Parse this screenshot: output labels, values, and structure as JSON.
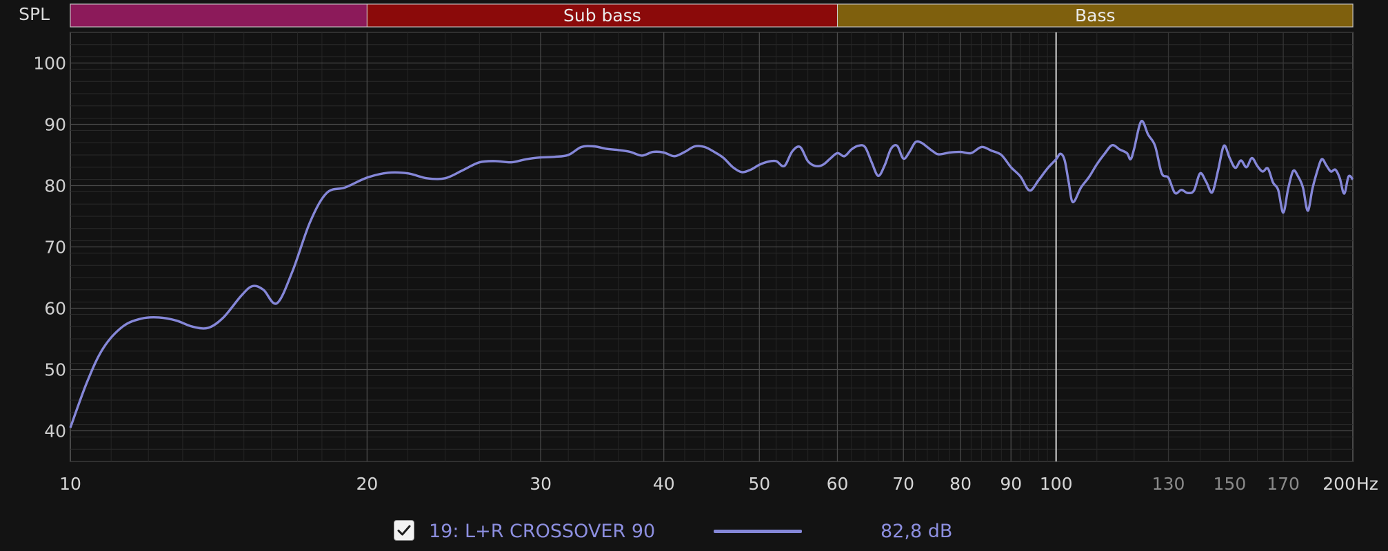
{
  "chart_data": {
    "type": "line",
    "title": "",
    "ylabel": "SPL",
    "xunit": "Hz",
    "xscale": "log",
    "xlim": [
      10,
      200
    ],
    "ylim": [
      35,
      105
    ],
    "grid": true,
    "y_ticks": [
      40,
      50,
      60,
      70,
      80,
      90,
      100
    ],
    "x_ticks": [
      {
        "value": 10,
        "label": "10",
        "bright": true
      },
      {
        "value": 20,
        "label": "20",
        "bright": true
      },
      {
        "value": 30,
        "label": "30",
        "bright": true
      },
      {
        "value": 40,
        "label": "40",
        "bright": true
      },
      {
        "value": 50,
        "label": "50",
        "bright": true
      },
      {
        "value": 60,
        "label": "60",
        "bright": true
      },
      {
        "value": 70,
        "label": "70",
        "bright": true
      },
      {
        "value": 80,
        "label": "80",
        "bright": true
      },
      {
        "value": 90,
        "label": "90",
        "bright": true
      },
      {
        "value": 100,
        "label": "100",
        "bright": true
      },
      {
        "value": 130,
        "label": "130",
        "bright": false
      },
      {
        "value": 150,
        "label": "150",
        "bright": false
      },
      {
        "value": 170,
        "label": "170",
        "bright": false
      },
      {
        "value": 200,
        "label": "200",
        "bright": true
      }
    ],
    "bands": [
      {
        "label": "",
        "from": 10,
        "to": 20,
        "color": "#8c1a5a"
      },
      {
        "label": "Sub bass",
        "from": 20,
        "to": 60,
        "color": "#8b0a0a"
      },
      {
        "label": "Bass",
        "from": 60,
        "to": 200,
        "color": "#7f600d"
      }
    ],
    "cursor_x": 100,
    "series": [
      {
        "name": "19: L+R CROSSOVER 90",
        "color": "#8587d8",
        "x": [
          10,
          10.4,
          10.8,
          11.3,
          11.8,
          12.3,
          12.8,
          13.3,
          13.8,
          14.3,
          14.9,
          15.3,
          15.7,
          16.2,
          16.8,
          17.5,
          18.2,
          19,
          20,
          21,
          22,
          23,
          24,
          25,
          26,
          27,
          28,
          29,
          30,
          31,
          32,
          33,
          34,
          35,
          36,
          37,
          38,
          39,
          40,
          41,
          42,
          43,
          44,
          45,
          46,
          47,
          48,
          49,
          50,
          51,
          52,
          53,
          54,
          55,
          56,
          57,
          58,
          59,
          60,
          61,
          62,
          63,
          64,
          65,
          66,
          67,
          68,
          69,
          70,
          71,
          72,
          73,
          74,
          75,
          76,
          78,
          80,
          82,
          84,
          86,
          88,
          90,
          92,
          94,
          96,
          98,
          100,
          101,
          102,
          103,
          104,
          106,
          108,
          110,
          112,
          114,
          116,
          118,
          119,
          120,
          122,
          124,
          126,
          128,
          130,
          132,
          134,
          136,
          138,
          140,
          142,
          144,
          146,
          148,
          150,
          152,
          154,
          156,
          158,
          160,
          162,
          164,
          166,
          168,
          170,
          172,
          174,
          176,
          178,
          180,
          182,
          184,
          186,
          188,
          190,
          192,
          194,
          196,
          198,
          200
        ],
        "y": [
          40.5,
          48,
          53.5,
          57,
          58.3,
          58.5,
          58,
          57,
          56.8,
          58.5,
          62,
          63.6,
          63,
          60.8,
          66,
          74,
          78.8,
          79.7,
          81.3,
          82.1,
          82,
          81.2,
          81.2,
          82.5,
          83.8,
          84,
          83.8,
          84.3,
          84.6,
          84.7,
          85,
          86.3,
          86.4,
          86,
          85.8,
          85.5,
          84.9,
          85.5,
          85.4,
          84.8,
          85.5,
          86.4,
          86.3,
          85.5,
          84.5,
          83,
          82.2,
          82.6,
          83.4,
          83.9,
          84,
          83.2,
          85.6,
          86.3,
          84,
          83.2,
          83.4,
          84.4,
          85.3,
          84.8,
          85.9,
          86.5,
          86.3,
          83.8,
          81.6,
          83.3,
          86,
          86.5,
          84.4,
          85.5,
          87.1,
          87,
          86.3,
          85.6,
          85.1,
          85.4,
          85.5,
          85.3,
          86.3,
          85.7,
          85,
          83,
          81.5,
          79.2,
          80.9,
          82.8,
          84.3,
          85.2,
          84.2,
          80.5,
          77.3,
          79.7,
          81.4,
          83.5,
          85.2,
          86.6,
          85.9,
          85.3,
          84.3,
          86,
          90.5,
          88.3,
          86.5,
          82,
          81.3,
          78.8,
          79.3,
          78.8,
          79.2,
          82,
          80.6,
          78.9,
          82.5,
          86.5,
          84.5,
          82.9,
          84.1,
          83,
          84.5,
          83.2,
          82.3,
          82.8,
          80.5,
          79.3,
          75.6,
          79.6,
          82.4,
          81.5,
          79.7,
          75.9,
          79.5,
          82.3,
          84.3,
          83.3,
          82.3,
          82.6,
          81.2,
          78.7,
          81.5,
          81
        ]
      }
    ],
    "legend": {
      "level_text": "82,8 dB",
      "checked": true
    }
  }
}
